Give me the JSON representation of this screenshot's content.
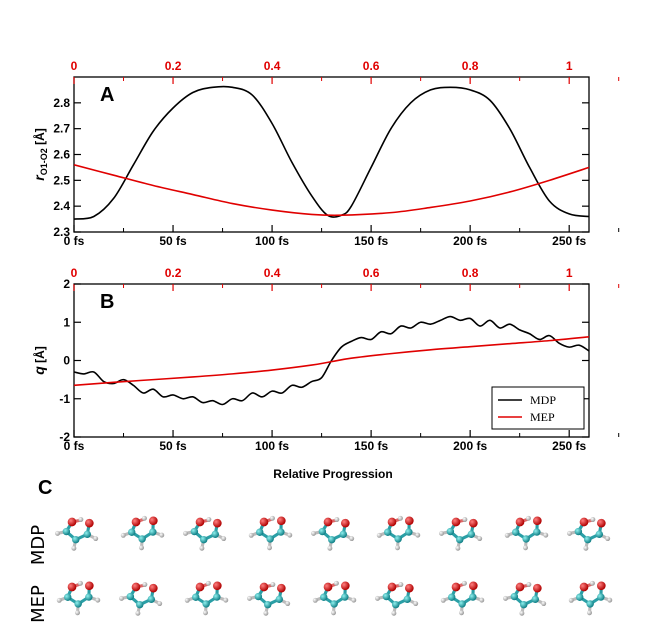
{
  "colors": {
    "mdp": "#000000",
    "mep": "#e00000",
    "top_axis": "#e00000"
  },
  "panel_labels": {
    "a": "A",
    "b": "B",
    "c": "C"
  },
  "xlabel": "Relative Progression",
  "top_ticks": [
    "0",
    "0.2",
    "0.4",
    "0.6",
    "0.8",
    "1"
  ],
  "bottom_ticks": [
    "0 fs",
    "50 fs",
    "100 fs",
    "150 fs",
    "200 fs",
    "250 fs"
  ],
  "legend": {
    "mdp": "MDP",
    "mep": "MEP"
  },
  "row_labels": {
    "mdp": "MDP",
    "mep": "MEP"
  },
  "chart_data": [
    {
      "type": "line",
      "panel": "A",
      "ylabel_main": "r",
      "ylabel_sub": "O1-O2",
      "ylabel_unit": " [Å]",
      "xlim": [
        0,
        260
      ],
      "ylim": [
        2.3,
        2.9
      ],
      "y_ticks": [
        "2.3",
        "2.4",
        "2.5",
        "2.6",
        "2.7",
        "2.8"
      ],
      "series": [
        {
          "name": "MDP",
          "x": [
            0,
            10,
            20,
            30,
            40,
            50,
            60,
            70,
            80,
            90,
            100,
            110,
            120,
            128,
            135,
            140,
            150,
            160,
            170,
            180,
            190,
            200,
            210,
            220,
            230,
            240,
            250,
            260
          ],
          "y": [
            2.35,
            2.36,
            2.43,
            2.56,
            2.69,
            2.78,
            2.84,
            2.86,
            2.86,
            2.83,
            2.72,
            2.57,
            2.44,
            2.365,
            2.365,
            2.4,
            2.55,
            2.7,
            2.8,
            2.85,
            2.86,
            2.85,
            2.81,
            2.7,
            2.55,
            2.42,
            2.37,
            2.36
          ]
        },
        {
          "name": "MEP",
          "x": [
            0,
            20,
            40,
            60,
            80,
            100,
            120,
            135,
            160,
            180,
            200,
            220,
            240,
            260
          ],
          "y": [
            2.56,
            2.52,
            2.48,
            2.445,
            2.41,
            2.385,
            2.368,
            2.365,
            2.375,
            2.395,
            2.42,
            2.455,
            2.5,
            2.55
          ]
        }
      ]
    },
    {
      "type": "line",
      "panel": "B",
      "ylabel_main": "q",
      "ylabel_sub": "",
      "ylabel_unit": " [Å]",
      "xlim": [
        0,
        260
      ],
      "ylim": [
        -2,
        2
      ],
      "y_ticks": [
        "-2",
        "-1",
        "0",
        "1",
        "2"
      ],
      "legend_position": "bottom-right",
      "series": [
        {
          "name": "MDP",
          "x": [
            0,
            5,
            10,
            15,
            20,
            25,
            30,
            35,
            40,
            45,
            50,
            55,
            60,
            65,
            70,
            75,
            80,
            85,
            90,
            95,
            100,
            105,
            110,
            115,
            120,
            125,
            130,
            135,
            140,
            145,
            150,
            155,
            160,
            165,
            170,
            175,
            180,
            185,
            190,
            195,
            200,
            205,
            210,
            215,
            220,
            225,
            230,
            235,
            240,
            245,
            250,
            255,
            260
          ],
          "y": [
            -0.3,
            -0.35,
            -0.3,
            -0.55,
            -0.6,
            -0.5,
            -0.65,
            -0.85,
            -0.75,
            -0.95,
            -0.9,
            -1.0,
            -0.95,
            -1.1,
            -1.05,
            -1.15,
            -1.0,
            -1.05,
            -0.85,
            -0.95,
            -0.8,
            -0.85,
            -0.65,
            -0.7,
            -0.55,
            -0.45,
            0.0,
            0.35,
            0.5,
            0.6,
            0.55,
            0.75,
            0.7,
            0.9,
            0.85,
            1.0,
            0.95,
            1.05,
            1.15,
            1.05,
            1.1,
            0.9,
            1.05,
            0.85,
            0.95,
            0.8,
            0.7,
            0.55,
            0.65,
            0.45,
            0.35,
            0.4,
            0.25
          ]
        },
        {
          "name": "MEP",
          "x": [
            0,
            20,
            40,
            60,
            80,
            100,
            120,
            130,
            140,
            160,
            180,
            200,
            220,
            240,
            260
          ],
          "y": [
            -0.65,
            -0.57,
            -0.5,
            -0.43,
            -0.35,
            -0.25,
            -0.12,
            -0.03,
            0.06,
            0.18,
            0.28,
            0.36,
            0.44,
            0.52,
            0.62
          ]
        }
      ]
    }
  ]
}
